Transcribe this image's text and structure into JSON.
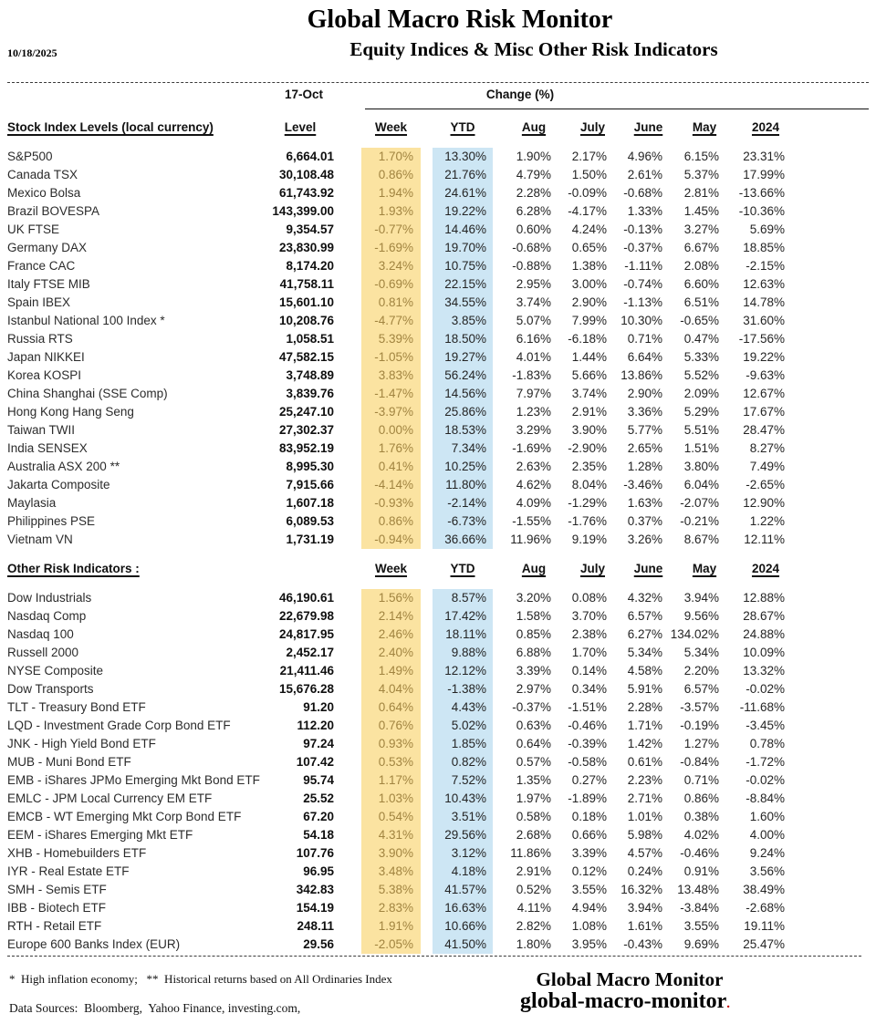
{
  "meta": {
    "title": "Global Macro Risk Monitor",
    "subtitle": "Equity Indices & Misc Other Risk Indicators",
    "date": "10/18/2025",
    "as_of": "17-Oct",
    "change_header": "Change (%)"
  },
  "columns": {
    "level": "Level",
    "week": "Week",
    "ytd": "YTD",
    "aug": "Aug",
    "july": "July",
    "june": "June",
    "may": "May",
    "y2024": "2024"
  },
  "sections": [
    {
      "label": "Stock Index Levels (local currency)",
      "rows": [
        {
          "name": "S&P500",
          "level": "6,664.01",
          "week": "1.70%",
          "ytd": "13.30%",
          "aug": "1.90%",
          "july": "2.17%",
          "june": "4.96%",
          "may": "6.15%",
          "y2024": "23.31%"
        },
        {
          "name": "Canada TSX",
          "level": "30,108.48",
          "week": "0.86%",
          "ytd": "21.76%",
          "aug": "4.79%",
          "july": "1.50%",
          "june": "2.61%",
          "may": "5.37%",
          "y2024": "17.99%"
        },
        {
          "name": "Mexico Bolsa",
          "level": "61,743.92",
          "week": "1.94%",
          "ytd": "24.61%",
          "aug": "2.28%",
          "july": "-0.09%",
          "june": "-0.68%",
          "may": "2.81%",
          "y2024": "-13.66%"
        },
        {
          "name": "Brazil BOVESPA",
          "level": "143,399.00",
          "week": "1.93%",
          "ytd": "19.22%",
          "aug": "6.28%",
          "july": "-4.17%",
          "june": "1.33%",
          "may": "1.45%",
          "y2024": "-10.36%"
        },
        {
          "name": "UK FTSE",
          "level": "9,354.57",
          "week": "-0.77%",
          "ytd": "14.46%",
          "aug": "0.60%",
          "july": "4.24%",
          "june": "-0.13%",
          "may": "3.27%",
          "y2024": "5.69%"
        },
        {
          "name": "Germany DAX",
          "level": "23,830.99",
          "week": "-1.69%",
          "ytd": "19.70%",
          "aug": "-0.68%",
          "july": "0.65%",
          "june": "-0.37%",
          "may": "6.67%",
          "y2024": "18.85%"
        },
        {
          "name": "France CAC",
          "level": "8,174.20",
          "week": "3.24%",
          "ytd": "10.75%",
          "aug": "-0.88%",
          "july": "1.38%",
          "june": "-1.11%",
          "may": "2.08%",
          "y2024": "-2.15%"
        },
        {
          "name": "Italy FTSE MIB",
          "level": "41,758.11",
          "week": "-0.69%",
          "ytd": "22.15%",
          "aug": "2.95%",
          "july": "3.00%",
          "june": "-0.74%",
          "may": "6.60%",
          "y2024": "12.63%"
        },
        {
          "name": "Spain IBEX",
          "level": "15,601.10",
          "week": "0.81%",
          "ytd": "34.55%",
          "aug": "3.74%",
          "july": "2.90%",
          "june": "-1.13%",
          "may": "6.51%",
          "y2024": "14.78%"
        },
        {
          "name": "Istanbul National 100 Index *",
          "level": "10,208.76",
          "week": "-4.77%",
          "ytd": "3.85%",
          "aug": "5.07%",
          "july": "7.99%",
          "june": "10.30%",
          "may": "-0.65%",
          "y2024": "31.60%"
        },
        {
          "name": "Russia RTS",
          "level": "1,058.51",
          "week": "5.39%",
          "ytd": "18.50%",
          "aug": "6.16%",
          "july": "-6.18%",
          "june": "0.71%",
          "may": "0.47%",
          "y2024": "-17.56%"
        },
        {
          "name": "Japan NIKKEI",
          "level": "47,582.15",
          "week": "-1.05%",
          "ytd": "19.27%",
          "aug": "4.01%",
          "july": "1.44%",
          "june": "6.64%",
          "may": "5.33%",
          "y2024": "19.22%"
        },
        {
          "name": "Korea KOSPI",
          "level": "3,748.89",
          "week": "3.83%",
          "ytd": "56.24%",
          "aug": "-1.83%",
          "july": "5.66%",
          "june": "13.86%",
          "may": "5.52%",
          "y2024": "-9.63%"
        },
        {
          "name": "China Shanghai (SSE Comp)",
          "level": "3,839.76",
          "week": "-1.47%",
          "ytd": "14.56%",
          "aug": "7.97%",
          "july": "3.74%",
          "june": "2.90%",
          "may": "2.09%",
          "y2024": "12.67%"
        },
        {
          "name": "Hong Kong Hang Seng",
          "level": "25,247.10",
          "week": "-3.97%",
          "ytd": "25.86%",
          "aug": "1.23%",
          "july": "2.91%",
          "june": "3.36%",
          "may": "5.29%",
          "y2024": "17.67%"
        },
        {
          "name": "Taiwan TWII",
          "level": "27,302.37",
          "week": "0.00%",
          "ytd": "18.53%",
          "aug": "3.29%",
          "july": "3.90%",
          "june": "5.77%",
          "may": "5.51%",
          "y2024": "28.47%"
        },
        {
          "name": "India SENSEX",
          "level": "83,952.19",
          "week": "1.76%",
          "ytd": "7.34%",
          "aug": "-1.69%",
          "july": "-2.90%",
          "june": "2.65%",
          "may": "1.51%",
          "y2024": "8.27%"
        },
        {
          "name": "Australia ASX 200 **",
          "level": "8,995.30",
          "week": "0.41%",
          "ytd": "10.25%",
          "aug": "2.63%",
          "july": "2.35%",
          "june": "1.28%",
          "may": "3.80%",
          "y2024": "7.49%"
        },
        {
          "name": "Jakarta Composite",
          "level": "7,915.66",
          "week": "-4.14%",
          "ytd": "11.80%",
          "aug": "4.62%",
          "july": "8.04%",
          "june": "-3.46%",
          "may": "6.04%",
          "y2024": "-2.65%"
        },
        {
          "name": "Maylasia",
          "level": "1,607.18",
          "week": "-0.93%",
          "ytd": "-2.14%",
          "aug": "4.09%",
          "july": "-1.29%",
          "june": "1.63%",
          "may": "-2.07%",
          "y2024": "12.90%"
        },
        {
          "name": "Philippines PSE",
          "level": "6,089.53",
          "week": "0.86%",
          "ytd": "-6.73%",
          "aug": "-1.55%",
          "july": "-1.76%",
          "june": "0.37%",
          "may": "-0.21%",
          "y2024": "1.22%"
        },
        {
          "name": "Vietnam VN",
          "level": "1,731.19",
          "week": "-0.94%",
          "ytd": "36.66%",
          "aug": "11.96%",
          "july": "9.19%",
          "june": "3.26%",
          "may": "8.67%",
          "y2024": "12.11%"
        }
      ]
    },
    {
      "label": "Other Risk Indicators :",
      "rows": [
        {
          "name": "Dow Industrials",
          "level": "46,190.61",
          "week": "1.56%",
          "ytd": "8.57%",
          "aug": "3.20%",
          "july": "0.08%",
          "june": "4.32%",
          "may": "3.94%",
          "y2024": "12.88%"
        },
        {
          "name": "Nasdaq Comp",
          "level": "22,679.98",
          "week": "2.14%",
          "ytd": "17.42%",
          "aug": "1.58%",
          "july": "3.70%",
          "june": "6.57%",
          "may": "9.56%",
          "y2024": "28.67%"
        },
        {
          "name": "Nasdaq 100",
          "level": "24,817.95",
          "week": "2.46%",
          "ytd": "18.11%",
          "aug": "0.85%",
          "july": "2.38%",
          "june": "6.27%",
          "may": "134.02%",
          "y2024": "24.88%"
        },
        {
          "name": "Russell 2000",
          "level": "2,452.17",
          "week": "2.40%",
          "ytd": "9.88%",
          "aug": "6.88%",
          "july": "1.70%",
          "june": "5.34%",
          "may": "5.34%",
          "y2024": "10.09%"
        },
        {
          "name": "NYSE Composite",
          "level": "21,411.46",
          "week": "1.49%",
          "ytd": "12.12%",
          "aug": "3.39%",
          "july": "0.14%",
          "june": "4.58%",
          "may": "2.20%",
          "y2024": "13.32%"
        },
        {
          "name": "Dow Transports",
          "level": "15,676.28",
          "week": "4.04%",
          "ytd": "-1.38%",
          "aug": "2.97%",
          "july": "0.34%",
          "june": "5.91%",
          "may": "6.57%",
          "y2024": "-0.02%"
        },
        {
          "name": "TLT - Treasury Bond ETF",
          "level": "91.20",
          "week": "0.64%",
          "ytd": "4.43%",
          "aug": "-0.37%",
          "july": "-1.51%",
          "june": "2.28%",
          "may": "-3.57%",
          "y2024": "-11.68%"
        },
        {
          "name": "LQD - Investment Grade Corp Bond ETF",
          "level": "112.20",
          "week": "0.76%",
          "ytd": "5.02%",
          "aug": "0.63%",
          "july": "-0.46%",
          "june": "1.71%",
          "may": "-0.19%",
          "y2024": "-3.45%"
        },
        {
          "name": "JNK - High Yield Bond ETF",
          "level": "97.24",
          "week": "0.93%",
          "ytd": "1.85%",
          "aug": "0.64%",
          "july": "-0.39%",
          "june": "1.42%",
          "may": "1.27%",
          "y2024": "0.78%"
        },
        {
          "name": "MUB - Muni Bond ETF",
          "level": "107.42",
          "week": "0.53%",
          "ytd": "0.82%",
          "aug": "0.57%",
          "july": "-0.58%",
          "june": "0.61%",
          "may": "-0.84%",
          "y2024": "-1.72%"
        },
        {
          "name": "EMB - iShares JPMo Emerging Mkt Bond ETF",
          "level": "95.74",
          "week": "1.17%",
          "ytd": "7.52%",
          "aug": "1.35%",
          "july": "0.27%",
          "june": "2.23%",
          "may": "0.71%",
          "y2024": "-0.02%"
        },
        {
          "name": "EMLC - JPM Local Currency EM ETF",
          "level": "25.52",
          "week": "1.03%",
          "ytd": "10.43%",
          "aug": "1.97%",
          "july": "-1.89%",
          "june": "2.71%",
          "may": "0.86%",
          "y2024": "-8.84%"
        },
        {
          "name": "EMCB - WT Emerging Mkt Corp Bond ETF",
          "level": "67.20",
          "week": "0.54%",
          "ytd": "3.51%",
          "aug": "0.58%",
          "july": "0.18%",
          "june": "1.01%",
          "may": "0.38%",
          "y2024": "1.60%"
        },
        {
          "name": "EEM - iShares Emerging Mkt ETF",
          "level": "54.18",
          "week": "4.31%",
          "ytd": "29.56%",
          "aug": "2.68%",
          "july": "0.66%",
          "june": "5.98%",
          "may": "4.02%",
          "y2024": "4.00%"
        },
        {
          "name": "XHB - Homebuilders ETF",
          "level": "107.76",
          "week": "3.90%",
          "ytd": "3.12%",
          "aug": "11.86%",
          "july": "3.39%",
          "june": "4.57%",
          "may": "-0.46%",
          "y2024": "9.24%"
        },
        {
          "name": "IYR - Real Estate ETF",
          "level": "96.95",
          "week": "3.48%",
          "ytd": "4.18%",
          "aug": "2.91%",
          "july": "0.12%",
          "june": "0.24%",
          "may": "0.91%",
          "y2024": "3.56%"
        },
        {
          "name": "SMH - Semis ETF",
          "level": "342.83",
          "week": "5.38%",
          "ytd": "41.57%",
          "aug": "0.52%",
          "july": "3.55%",
          "june": "16.32%",
          "may": "13.48%",
          "y2024": "38.49%"
        },
        {
          "name": "IBB - Biotech ETF",
          "level": "154.19",
          "week": "2.83%",
          "ytd": "16.63%",
          "aug": "4.11%",
          "july": "4.94%",
          "june": "3.94%",
          "may": "-3.84%",
          "y2024": "-2.68%"
        },
        {
          "name": "RTH - Retail ETF",
          "level": "248.11",
          "week": "1.91%",
          "ytd": "10.66%",
          "aug": "2.82%",
          "july": "1.08%",
          "june": "1.61%",
          "may": "3.55%",
          "y2024": "19.11%"
        },
        {
          "name": "Europe 600 Banks Index (EUR)",
          "level": "29.56",
          "week": "-2.05%",
          "ytd": "41.50%",
          "aug": "1.80%",
          "july": "3.95%",
          "june": "-0.43%",
          "may": "9.69%",
          "y2024": "25.47%"
        }
      ]
    }
  ],
  "footer": {
    "footnote": "*  High inflation economy;   **  Historical returns based on All Ordinaries Index",
    "data_sources": "Data Sources:  Bloomberg,  Yahoo Finance, investing.com,",
    "brand_line1": "Global Macro Monitor",
    "brand_line2": "global-macro-monitor",
    "brand_dot": "."
  },
  "colors": {
    "week_bg": "#FBE3A1",
    "week_text": "#A18440",
    "ytd_bg": "#CDE6F4",
    "accent_dot": "#C00000"
  }
}
